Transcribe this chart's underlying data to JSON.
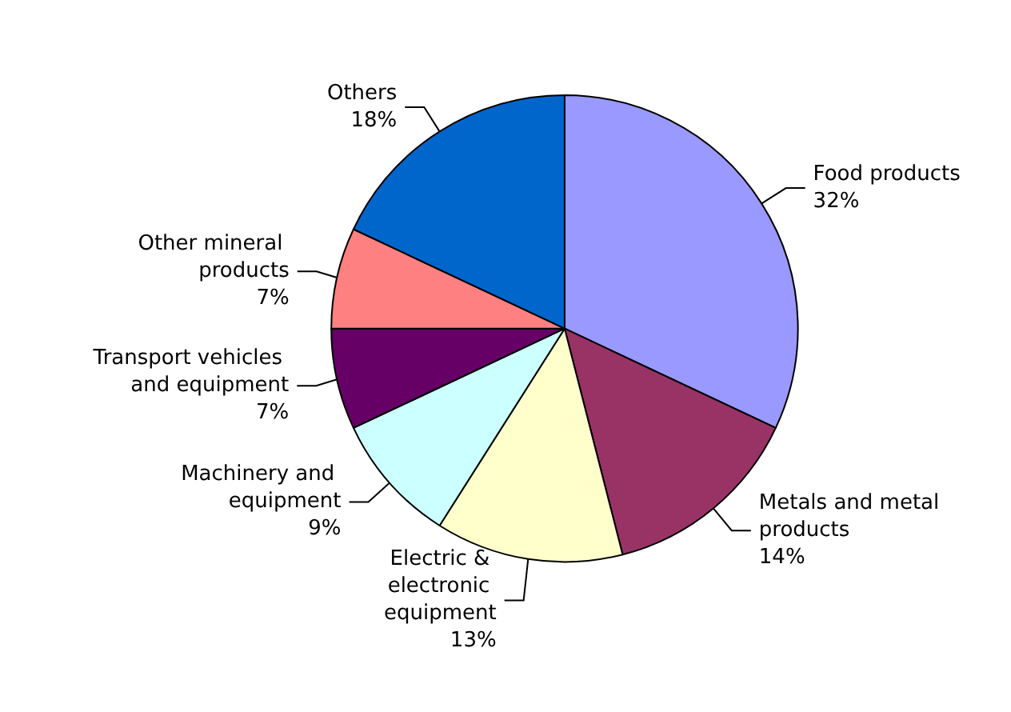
{
  "chart_data": {
    "type": "pie",
    "categories": [
      "Food products",
      "Metals and metal products",
      "Electric & electronic equipment",
      "Machinery and equipment",
      "Transport vehicles and equipment",
      "Other mineral products",
      "Others"
    ],
    "values": [
      32,
      14,
      13,
      9,
      7,
      7,
      18
    ],
    "value_labels": [
      "32%",
      "14%",
      "13%",
      "9%",
      "7%",
      "7%",
      "18%"
    ],
    "colors": [
      "#9999ff",
      "#993366",
      "#ffffcc",
      "#ccffff",
      "#660066",
      "#ff8080",
      "#0066cc"
    ],
    "legend": false
  }
}
